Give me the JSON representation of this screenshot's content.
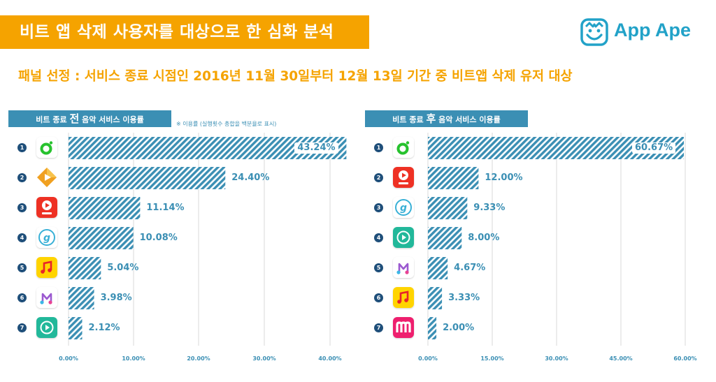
{
  "header": {
    "title": "비트 앱 삭제 사용자를 대상으로 한 심화 분석",
    "brand": "App Ape",
    "subtitle": "패널 선정 : 서비스 종료 시점인 2016년 11월 30일부터 12월 13일 기간 중 비트앱 삭제 유저 대상"
  },
  "colors": {
    "accent": "#f5a300",
    "bar": "#3b8fb4",
    "header_bg": "#3b8fb4",
    "rank_badge": "#1f4f7a",
    "brand": "#22a2c8"
  },
  "chart_data": [
    {
      "type": "bar",
      "orientation": "horizontal",
      "title_prefix": "비트 종료 ",
      "title_emphasis": "전",
      "title_suffix": " 음악 서비스 이용률",
      "note": "※ 이용률 (실행횟수 총합을 백분율로 표시)",
      "categories": [
        "1",
        "2",
        "3",
        "4",
        "5",
        "6",
        "7"
      ],
      "app_icons": [
        "melon-icon",
        "genie-icon",
        "bugs-icon",
        "olleh-g-icon",
        "naver-music-icon",
        "soribada-icon",
        "mnet-player-icon"
      ],
      "values": [
        43.24,
        24.4,
        11.14,
        10.08,
        5.04,
        3.98,
        2.12
      ],
      "labels": [
        "43.24%",
        "24.40%",
        "11.14%",
        "10.08%",
        "5.04%",
        "3.98%",
        "2.12%"
      ],
      "xlim": [
        0,
        42
      ],
      "ticks": [
        0,
        10,
        20,
        30,
        40
      ],
      "tick_labels": [
        "0.00%",
        "10.00%",
        "20.00%",
        "30.00%",
        "40.00%"
      ],
      "grid": true
    },
    {
      "type": "bar",
      "orientation": "horizontal",
      "title_prefix": "비트 종료 ",
      "title_emphasis": "후",
      "title_suffix": " 음악 서비스 이용률",
      "categories": [
        "1",
        "2",
        "3",
        "4",
        "5",
        "6",
        "7"
      ],
      "app_icons": [
        "melon-icon",
        "bugs-icon",
        "olleh-g-icon",
        "mnet-player-icon",
        "soribada-icon",
        "naver-music-icon",
        "mnet-icon"
      ],
      "values": [
        60.67,
        12.0,
        9.33,
        8.0,
        4.67,
        3.33,
        2.0
      ],
      "labels": [
        "60.67%",
        "12.00%",
        "9.33%",
        "8.00%",
        "4.67%",
        "3.33%",
        "2.00%"
      ],
      "xlim": [
        0,
        61
      ],
      "ticks": [
        0,
        15,
        30,
        45,
        60
      ],
      "tick_labels": [
        "0.00%",
        "15.00%",
        "30.00%",
        "45.00%",
        "60.00%"
      ],
      "grid": true
    }
  ]
}
